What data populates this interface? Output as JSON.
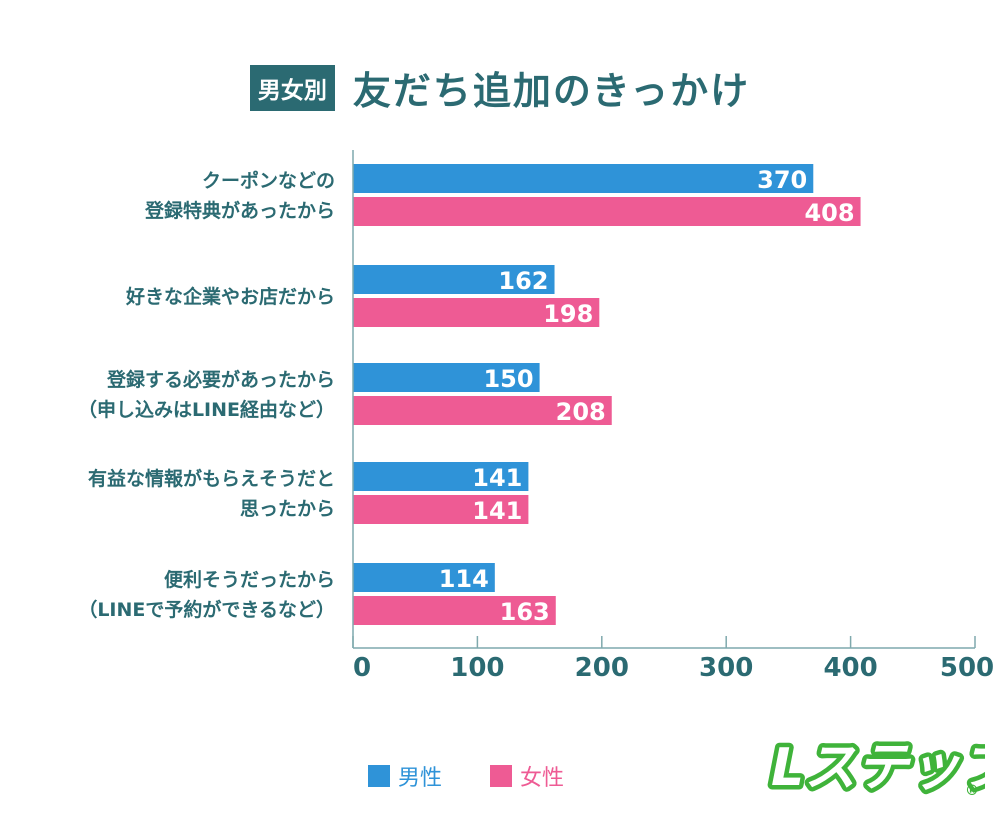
{
  "header": {
    "badge": "男女別",
    "title": "友だち追加のきっかけ"
  },
  "colors": {
    "male": "#2f93d8",
    "female": "#ee5b94",
    "text": "#2b6a72",
    "axis": "#7fa9ad",
    "logo": "#3fb33a"
  },
  "logo": {
    "text": "Lステップ"
  },
  "chart_data": {
    "type": "bar",
    "orientation": "horizontal",
    "title": "友だち追加のきっかけ",
    "categories": [
      [
        "クーポンなどの",
        "登録特典があったから"
      ],
      [
        "好きな企業やお店だから"
      ],
      [
        "登録する必要があったから",
        "（申し込みはLINE経由など）"
      ],
      [
        "有益な情報がもらえそうだと",
        "思ったから"
      ],
      [
        "便利そうだったから",
        "（LINEで予約ができるなど）"
      ]
    ],
    "series": [
      {
        "name": "男性",
        "values": [
          370,
          162,
          150,
          141,
          114
        ]
      },
      {
        "name": "女性",
        "values": [
          408,
          198,
          208,
          141,
          163
        ]
      }
    ],
    "xlim": [
      0,
      500
    ],
    "xticks": [
      0,
      100,
      200,
      300,
      400,
      500
    ],
    "grid": false,
    "legend": "bottom"
  }
}
